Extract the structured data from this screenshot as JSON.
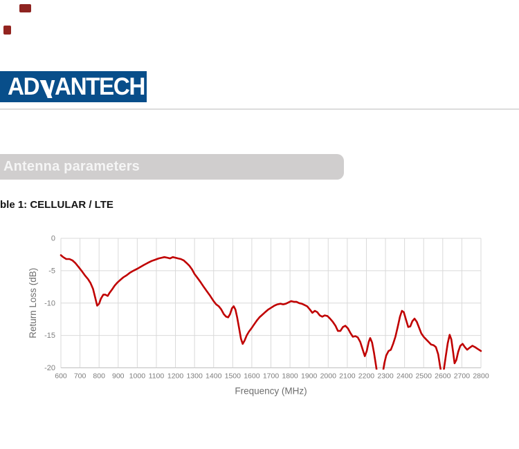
{
  "decor": {
    "mark1_color": "#8e2420",
    "mark2_color": "#93241f"
  },
  "header": {
    "logo_text_left": "AD",
    "logo_text_right": "ANTECH",
    "logo_bg": "#084e8a",
    "logo_fg": "#ffffff"
  },
  "section": {
    "label": "Antenna parameters",
    "bar_color": "#d0cece",
    "text_color": "#f5f5f5"
  },
  "caption": {
    "text": "ble 1: CELLULAR / LTE"
  },
  "chart_data": {
    "type": "line",
    "title": "",
    "xlabel": "Frequency (MHz)",
    "ylabel": "Return Loss (dB)",
    "xlim": [
      600,
      2800
    ],
    "ylim": [
      -20,
      0
    ],
    "xticks": [
      600,
      700,
      800,
      900,
      1000,
      1100,
      1200,
      1300,
      1400,
      1500,
      1600,
      1700,
      1800,
      1900,
      2000,
      2100,
      2200,
      2300,
      2400,
      2500,
      2600,
      2700,
      2800
    ],
    "yticks": [
      0,
      -5,
      -10,
      -15,
      -20
    ],
    "grid": true,
    "legend": "none",
    "line_color": "#c00000",
    "grid_color": "#d9d9d9",
    "axis_line_color": "#bfbfbf",
    "tick_label_color": "#7d7d7d",
    "axis_title_color": "#6e6e6e",
    "series": [
      {
        "name": "Return Loss",
        "points": [
          [
            600,
            -2.6
          ],
          [
            612,
            -2.9
          ],
          [
            628,
            -3.2
          ],
          [
            645,
            -3.2
          ],
          [
            660,
            -3.4
          ],
          [
            675,
            -3.8
          ],
          [
            692,
            -4.4
          ],
          [
            708,
            -5.0
          ],
          [
            725,
            -5.7
          ],
          [
            742,
            -6.3
          ],
          [
            755,
            -6.9
          ],
          [
            768,
            -7.8
          ],
          [
            780,
            -9.2
          ],
          [
            790,
            -10.4
          ],
          [
            800,
            -10.1
          ],
          [
            810,
            -9.3
          ],
          [
            822,
            -8.7
          ],
          [
            833,
            -8.7
          ],
          [
            845,
            -8.9
          ],
          [
            855,
            -8.4
          ],
          [
            868,
            -7.9
          ],
          [
            882,
            -7.3
          ],
          [
            897,
            -6.8
          ],
          [
            912,
            -6.4
          ],
          [
            928,
            -6.0
          ],
          [
            945,
            -5.7
          ],
          [
            962,
            -5.3
          ],
          [
            980,
            -5.0
          ],
          [
            1000,
            -4.7
          ],
          [
            1018,
            -4.4
          ],
          [
            1036,
            -4.1
          ],
          [
            1055,
            -3.8
          ],
          [
            1075,
            -3.5
          ],
          [
            1095,
            -3.3
          ],
          [
            1112,
            -3.1
          ],
          [
            1128,
            -3.0
          ],
          [
            1142,
            -2.9
          ],
          [
            1158,
            -3.0
          ],
          [
            1172,
            -3.1
          ],
          [
            1186,
            -2.9
          ],
          [
            1200,
            -3.0
          ],
          [
            1214,
            -3.1
          ],
          [
            1228,
            -3.2
          ],
          [
            1243,
            -3.4
          ],
          [
            1258,
            -3.8
          ],
          [
            1272,
            -4.2
          ],
          [
            1287,
            -4.8
          ],
          [
            1300,
            -5.5
          ],
          [
            1315,
            -6.1
          ],
          [
            1330,
            -6.7
          ],
          [
            1348,
            -7.5
          ],
          [
            1365,
            -8.2
          ],
          [
            1382,
            -8.9
          ],
          [
            1400,
            -9.7
          ],
          [
            1413,
            -10.2
          ],
          [
            1427,
            -10.5
          ],
          [
            1440,
            -11.0
          ],
          [
            1453,
            -11.7
          ],
          [
            1465,
            -12.1
          ],
          [
            1476,
            -12.2
          ],
          [
            1486,
            -11.7
          ],
          [
            1496,
            -10.8
          ],
          [
            1505,
            -10.5
          ],
          [
            1514,
            -11.0
          ],
          [
            1523,
            -12.2
          ],
          [
            1533,
            -13.8
          ],
          [
            1543,
            -15.5
          ],
          [
            1552,
            -16.3
          ],
          [
            1562,
            -15.8
          ],
          [
            1573,
            -15.0
          ],
          [
            1585,
            -14.4
          ],
          [
            1598,
            -13.9
          ],
          [
            1612,
            -13.3
          ],
          [
            1626,
            -12.7
          ],
          [
            1640,
            -12.2
          ],
          [
            1655,
            -11.8
          ],
          [
            1670,
            -11.4
          ],
          [
            1686,
            -11.0
          ],
          [
            1702,
            -10.7
          ],
          [
            1718,
            -10.4
          ],
          [
            1734,
            -10.2
          ],
          [
            1750,
            -10.1
          ],
          [
            1764,
            -10.2
          ],
          [
            1778,
            -10.1
          ],
          [
            1792,
            -9.9
          ],
          [
            1806,
            -9.7
          ],
          [
            1820,
            -9.8
          ],
          [
            1834,
            -9.8
          ],
          [
            1848,
            -10.0
          ],
          [
            1862,
            -10.1
          ],
          [
            1876,
            -10.3
          ],
          [
            1890,
            -10.5
          ],
          [
            1904,
            -11.0
          ],
          [
            1917,
            -11.5
          ],
          [
            1930,
            -11.2
          ],
          [
            1943,
            -11.4
          ],
          [
            1956,
            -11.9
          ],
          [
            1969,
            -12.1
          ],
          [
            1982,
            -11.9
          ],
          [
            1996,
            -12.0
          ],
          [
            2010,
            -12.4
          ],
          [
            2024,
            -12.9
          ],
          [
            2038,
            -13.5
          ],
          [
            2051,
            -14.3
          ],
          [
            2064,
            -14.3
          ],
          [
            2077,
            -13.7
          ],
          [
            2090,
            -13.5
          ],
          [
            2103,
            -13.9
          ],
          [
            2116,
            -14.6
          ],
          [
            2129,
            -15.2
          ],
          [
            2142,
            -15.1
          ],
          [
            2155,
            -15.3
          ],
          [
            2168,
            -16.0
          ],
          [
            2181,
            -17.2
          ],
          [
            2192,
            -18.2
          ],
          [
            2202,
            -17.4
          ],
          [
            2212,
            -16.0
          ],
          [
            2220,
            -15.4
          ],
          [
            2230,
            -16.1
          ],
          [
            2240,
            -17.7
          ],
          [
            2250,
            -19.6
          ],
          [
            2260,
            -21.6
          ],
          [
            2272,
            -22.6
          ],
          [
            2284,
            -21.2
          ],
          [
            2294,
            -19.3
          ],
          [
            2304,
            -18.1
          ],
          [
            2316,
            -17.4
          ],
          [
            2328,
            -17.2
          ],
          [
            2340,
            -16.3
          ],
          [
            2352,
            -15.2
          ],
          [
            2364,
            -13.7
          ],
          [
            2376,
            -12.1
          ],
          [
            2386,
            -11.2
          ],
          [
            2396,
            -11.4
          ],
          [
            2408,
            -12.6
          ],
          [
            2419,
            -13.7
          ],
          [
            2430,
            -13.6
          ],
          [
            2441,
            -12.8
          ],
          [
            2452,
            -12.4
          ],
          [
            2464,
            -12.9
          ],
          [
            2476,
            -13.8
          ],
          [
            2488,
            -14.7
          ],
          [
            2500,
            -15.2
          ],
          [
            2513,
            -15.6
          ],
          [
            2526,
            -16.0
          ],
          [
            2539,
            -16.4
          ],
          [
            2552,
            -16.5
          ],
          [
            2564,
            -16.8
          ],
          [
            2576,
            -17.9
          ],
          [
            2586,
            -19.8
          ],
          [
            2596,
            -21.4
          ],
          [
            2606,
            -20.2
          ],
          [
            2616,
            -18.2
          ],
          [
            2626,
            -16.2
          ],
          [
            2636,
            -14.9
          ],
          [
            2645,
            -15.6
          ],
          [
            2654,
            -17.5
          ],
          [
            2662,
            -19.3
          ],
          [
            2671,
            -18.8
          ],
          [
            2681,
            -17.5
          ],
          [
            2692,
            -16.6
          ],
          [
            2704,
            -16.3
          ],
          [
            2716,
            -16.8
          ],
          [
            2728,
            -17.2
          ],
          [
            2741,
            -16.9
          ],
          [
            2755,
            -16.6
          ],
          [
            2769,
            -16.8
          ],
          [
            2784,
            -17.1
          ],
          [
            2800,
            -17.4
          ]
        ]
      }
    ]
  }
}
